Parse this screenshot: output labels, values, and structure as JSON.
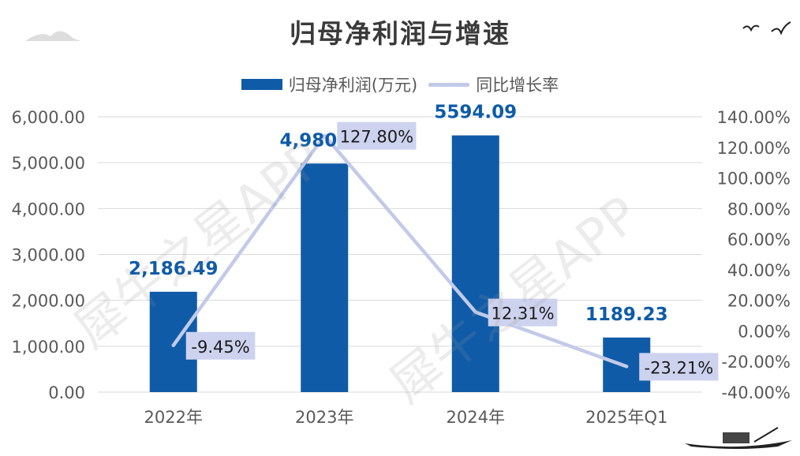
{
  "chart_data": {
    "type": "bar",
    "title": "归母净利润与增速",
    "categories": [
      "2022年",
      "2023年",
      "2024年",
      "2025年Q1"
    ],
    "series": [
      {
        "name": "归母净利润(万元)",
        "type": "bar",
        "axis": "left",
        "values": [
          2186.49,
          4980.77,
          5594.09,
          1189.23
        ],
        "labels": [
          "2,186.49",
          "4,980.77",
          "5594.09",
          "1189.23"
        ],
        "color": "#0f5ba8"
      },
      {
        "name": "同比增长率",
        "type": "line",
        "axis": "right",
        "values": [
          -9.45,
          127.8,
          12.31,
          -23.21
        ],
        "labels": [
          "-9.45%",
          "127.80%",
          "12.31%",
          "-23.21%"
        ],
        "color": "#c3cae9"
      }
    ],
    "y_left": {
      "ylim": [
        0,
        6000
      ],
      "ticks": [
        "0.00",
        "1,000.00",
        "2,000.00",
        "3,000.00",
        "4,000.00",
        "5,000.00",
        "6,000.00"
      ]
    },
    "y_right": {
      "ylim": [
        -40,
        140
      ],
      "ticks": [
        "-40.00%",
        "-20.00%",
        "0.00%",
        "20.00%",
        "40.00%",
        "60.00%",
        "80.00%",
        "100.00%",
        "120.00%",
        "140.00%"
      ]
    },
    "grid": true,
    "legend": "top"
  },
  "watermark": "犀牛之星APP",
  "colors": {
    "bar": "#0f5ba8",
    "line": "#c3cae9",
    "label_box": "#cdd3ef",
    "grid": "#d9d9d9",
    "title": "#3a3a3a"
  }
}
